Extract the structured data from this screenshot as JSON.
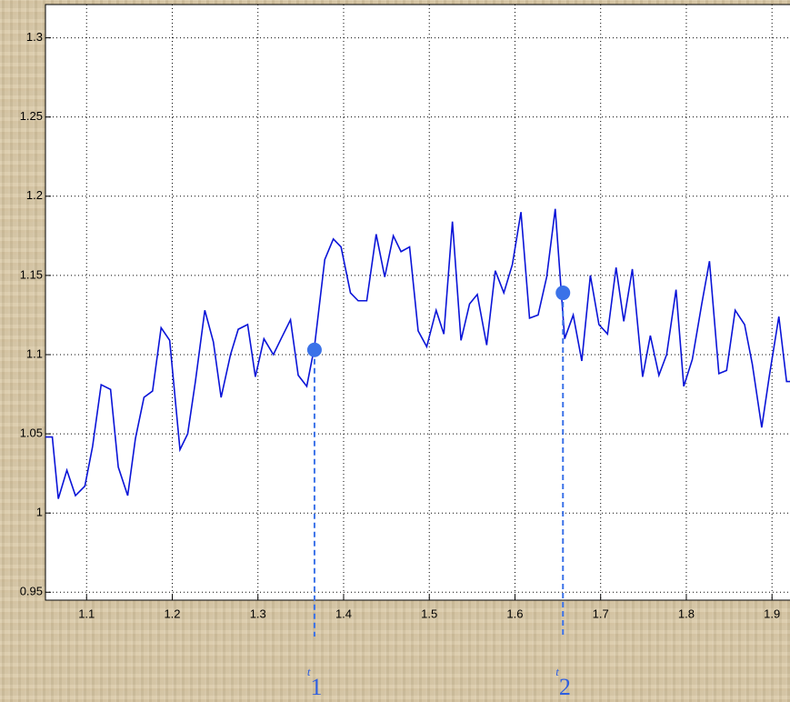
{
  "chart_data": {
    "type": "line",
    "x": [
      1.052,
      1.06,
      1.067,
      1.077,
      1.087,
      1.098,
      1.107,
      1.117,
      1.128,
      1.137,
      1.148,
      1.157,
      1.167,
      1.177,
      1.187,
      1.197,
      1.209,
      1.218,
      1.227,
      1.238,
      1.248,
      1.257,
      1.268,
      1.277,
      1.288,
      1.297,
      1.307,
      1.318,
      1.327,
      1.338,
      1.347,
      1.357,
      1.366,
      1.378,
      1.388,
      1.397,
      1.408,
      1.417,
      1.427,
      1.438,
      1.448,
      1.458,
      1.467,
      1.477,
      1.487,
      1.497,
      1.508,
      1.517,
      1.527,
      1.537,
      1.547,
      1.556,
      1.567,
      1.577,
      1.587,
      1.597,
      1.607,
      1.617,
      1.627,
      1.637,
      1.647,
      1.658,
      1.668,
      1.678,
      1.688,
      1.698,
      1.708,
      1.718,
      1.727,
      1.737,
      1.749,
      1.758,
      1.768,
      1.777,
      1.788,
      1.797,
      1.807,
      1.818,
      1.827,
      1.838,
      1.847,
      1.857,
      1.868,
      1.877,
      1.888,
      1.897,
      1.908,
      1.917,
      1.921
    ],
    "series": [
      {
        "color": "#0a14d8",
        "values": [
          1.048,
          1.048,
          1.009,
          1.027,
          1.011,
          1.017,
          1.042,
          1.081,
          1.078,
          1.029,
          1.011,
          1.047,
          1.073,
          1.077,
          1.117,
          1.109,
          1.04,
          1.05,
          1.083,
          1.128,
          1.108,
          1.073,
          1.1,
          1.116,
          1.119,
          1.086,
          1.11,
          1.1,
          1.11,
          1.122,
          1.087,
          1.08,
          1.105,
          1.16,
          1.173,
          1.168,
          1.139,
          1.134,
          1.134,
          1.176,
          1.149,
          1.175,
          1.165,
          1.168,
          1.115,
          1.105,
          1.128,
          1.113,
          1.184,
          1.109,
          1.132,
          1.138,
          1.106,
          1.153,
          1.139,
          1.157,
          1.19,
          1.123,
          1.125,
          1.149,
          1.192,
          1.11,
          1.125,
          1.096,
          1.15,
          1.119,
          1.113,
          1.155,
          1.121,
          1.154,
          1.086,
          1.112,
          1.087,
          1.1,
          1.141,
          1.08,
          1.097,
          1.132,
          1.159,
          1.088,
          1.09,
          1.128,
          1.119,
          1.094,
          1.054,
          1.087,
          1.124,
          1.083,
          1.083
        ]
      }
    ],
    "markers": [
      {
        "x": 1.366,
        "y": 1.103,
        "label": "t",
        "subscript": "1",
        "color": "#3b72e8"
      },
      {
        "x": 1.656,
        "y": 1.139,
        "label": "t",
        "subscript": "2",
        "color": "#3b72e8"
      }
    ],
    "xlim": [
      1.052,
      1.921
    ],
    "ylim": [
      0.945,
      1.321
    ],
    "xticks": [
      1.1,
      1.2,
      1.3,
      1.4,
      1.5,
      1.6,
      1.7,
      1.8,
      1.9
    ],
    "yticks": [
      0.95,
      1,
      1.05,
      1.1,
      1.15,
      1.2,
      1.25,
      1.3
    ],
    "grid": true
  }
}
